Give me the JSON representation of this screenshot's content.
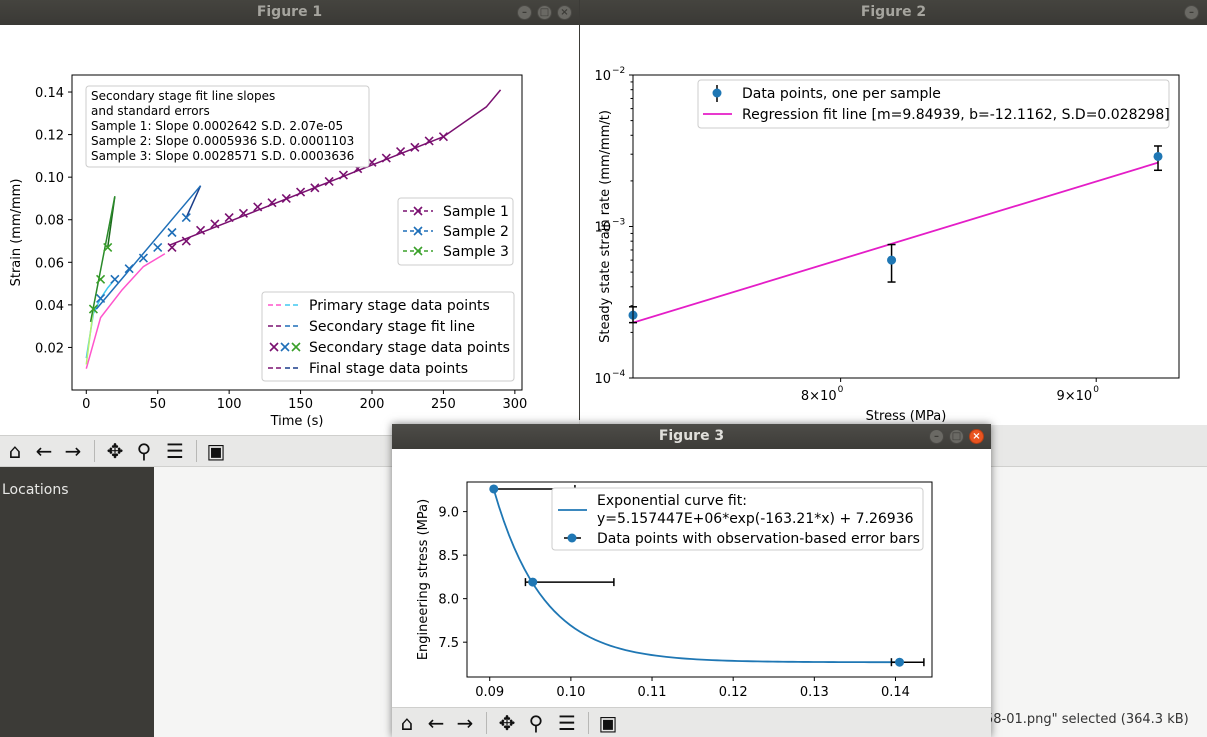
{
  "figure1": {
    "title": "Figure 1",
    "chart_data": {
      "type": "line",
      "xlabel": "Time (s)",
      "ylabel": "Strain (mm/mm)",
      "xlim": [
        -10,
        305
      ],
      "ylim": [
        0.0,
        0.148
      ],
      "xticks": [
        "0",
        "50",
        "100",
        "150",
        "200",
        "250",
        "300"
      ],
      "yticks": [
        "0.02",
        "0.04",
        "0.06",
        "0.08",
        "0.10",
        "0.12",
        "0.14"
      ],
      "annotation": [
        "Secondary stage fit line slopes",
        "and standard errors",
        "Sample 1: Slope 0.0002642 S.D. 2.07e-05",
        "Sample 2: Slope 0.0005936 S.D. 0.0001103",
        "Sample 3: Slope 0.0028571 S.D. 0.0003636"
      ],
      "legend_samples": [
        "Sample 1",
        "Sample 2",
        "Sample 3"
      ],
      "legend_stages": [
        "Primary stage data points",
        "Secondary stage fit line",
        "Secondary stage data points",
        "Final stage data points"
      ],
      "series": [
        {
          "name": "Sample 1",
          "primary": {
            "x": [
              0,
              10,
              25,
              40,
              55
            ],
            "y": [
              0.01,
              0.034,
              0.047,
              0.058,
              0.064
            ]
          },
          "fit": {
            "x": [
              58,
              250
            ],
            "y": [
              0.068,
              0.119
            ]
          },
          "points": {
            "x": [
              60,
              70,
              80,
              90,
              100,
              110,
              120,
              130,
              140,
              150,
              160,
              170,
              180,
              190,
              200,
              210,
              220,
              230,
              240,
              250
            ],
            "y": [
              0.067,
              0.07,
              0.075,
              0.078,
              0.081,
              0.083,
              0.086,
              0.088,
              0.09,
              0.093,
              0.095,
              0.098,
              0.101,
              0.104,
              0.107,
              0.109,
              0.112,
              0.114,
              0.117,
              0.119
            ]
          },
          "final": {
            "x": [
              250,
              280,
              290
            ],
            "y": [
              0.119,
              0.133,
              0.141
            ]
          }
        },
        {
          "name": "Sample 2",
          "primary": {
            "x": [
              0,
              5,
              10,
              15,
              20
            ],
            "y": [
              0.015,
              0.036,
              0.043,
              0.048,
              0.052
            ]
          },
          "fit": {
            "x": [
              7,
              80
            ],
            "y": [
              0.038,
              0.096
            ]
          },
          "points": {
            "x": [
              10,
              20,
              30,
              40,
              50,
              60,
              70
            ],
            "y": [
              0.043,
              0.052,
              0.057,
              0.062,
              0.067,
              0.074,
              0.081
            ]
          },
          "final": {
            "x": [
              70,
              80
            ],
            "y": [
              0.081,
              0.096
            ]
          }
        },
        {
          "name": "Sample 3",
          "primary": {
            "x": [
              0,
              5
            ],
            "y": [
              0.012,
              0.038
            ]
          },
          "fit": {
            "x": [
              3,
              20
            ],
            "y": [
              0.032,
              0.091
            ]
          },
          "points": {
            "x": [
              5,
              10,
              15
            ],
            "y": [
              0.038,
              0.052,
              0.067
            ]
          },
          "final": {
            "x": [
              15,
              20
            ],
            "y": [
              0.067,
              0.091
            ]
          }
        }
      ]
    }
  },
  "figure2": {
    "title": "Figure 2",
    "chart_data": {
      "type": "scatter",
      "xlabel": "Stress (MPa)",
      "ylabel": "Steady state strain rate (mm/mm/t)",
      "yscale": "log",
      "xscale": "log",
      "xlim": [
        7.27,
        9.35
      ],
      "ylim": [
        0.0001,
        0.01
      ],
      "xticks": [
        {
          "value": 8,
          "base": "8",
          "exp": "10",
          "pow": "0"
        },
        {
          "value": 9,
          "base": "9",
          "exp": "10",
          "pow": "0"
        }
      ],
      "yticks": [
        {
          "value": 0.0001,
          "base": "10",
          "pow": "−4"
        },
        {
          "value": 0.001,
          "base": "10",
          "pow": "−3"
        },
        {
          "value": 0.01,
          "base": "10",
          "pow": "−2"
        }
      ],
      "legend": [
        "Data points, one per sample",
        "Regression fit line [m=9.84939, b=-12.1162, S.D=0.028298]"
      ],
      "points": {
        "x": [
          7.27,
          8.19,
          9.26
        ],
        "y": [
          0.00026,
          0.0006,
          0.0029
        ],
        "yerr_low": [
          0.000232,
          0.00043,
          0.00235
        ],
        "yerr_high": [
          0.000295,
          0.00076,
          0.0034
        ]
      },
      "fit": {
        "x": [
          7.27,
          9.26
        ],
        "y": [
          0.000232,
          0.00264
        ]
      },
      "colors": {
        "points": "#1f77b4",
        "fit": "#e41dc7"
      }
    }
  },
  "figure3": {
    "title": "Figure 3",
    "chart_data": {
      "type": "scatter",
      "xlabel": "",
      "ylabel": "Engineering stress (MPa)",
      "xlim": [
        0.0872,
        0.1445
      ],
      "ylim": [
        7.1,
        9.34
      ],
      "xticks": [
        "0.09",
        "0.10",
        "0.11",
        "0.12",
        "0.13",
        "0.14"
      ],
      "yticks": [
        "7.5",
        "8.0",
        "8.5",
        "9.0"
      ],
      "legend": [
        "Exponential curve fit:",
        "y=5.157447E+06*exp(-163.21*x) + 7.26936",
        "Data points with observation-based error bars"
      ],
      "points": {
        "x": [
          0.0905,
          0.0953,
          0.1405
        ],
        "y": [
          9.26,
          8.19,
          7.27
        ],
        "xerr_low": [
          0.0905,
          0.0944,
          0.1395
        ],
        "xerr_high": [
          0.1005,
          0.1053,
          0.1435
        ]
      },
      "curve": {
        "a": 5157447,
        "k": -163.21,
        "c": 7.26936,
        "x_from": 0.0905,
        "x_to": 0.1405
      },
      "colors": {
        "points": "#1f77b4",
        "curve": "#1f77b4"
      }
    }
  },
  "filemanager": {
    "sidebar_label": "Locations",
    "status": "58-01.png\" selected  (364.3 kB)"
  },
  "toolbar_icons": [
    "home-icon",
    "back-arrow-icon",
    "forward-arrow-icon",
    "pan-icon",
    "zoom-icon",
    "configure-subplots-icon",
    "save-icon"
  ]
}
